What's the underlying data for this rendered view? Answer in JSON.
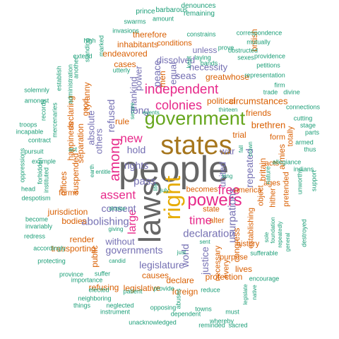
{
  "palette": {
    "green": "#1B9E77",
    "orange": "#D95F02",
    "purple": "#7570B3",
    "magenta": "#E7298A",
    "lime": "#66A61E",
    "gold": "#E6AB02",
    "brown": "#A6761D",
    "gray": "#666666"
  },
  "words": [
    {
      "text": "people",
      "color": "gray"
    },
    {
      "text": "states",
      "color": "brown"
    },
    {
      "text": "laws",
      "color": "gray"
    },
    {
      "text": "government",
      "color": "lime"
    },
    {
      "text": "right",
      "color": "gold"
    },
    {
      "text": "powers",
      "color": "magenta"
    },
    {
      "text": "among",
      "color": "magenta"
    },
    {
      "text": "independent",
      "color": "magenta"
    },
    {
      "text": "colonies",
      "color": "magenta"
    },
    {
      "text": "time",
      "color": "magenta"
    },
    {
      "text": "free",
      "color": "magenta"
    },
    {
      "text": "assent",
      "color": "magenta"
    },
    {
      "text": "new",
      "color": "magenta"
    },
    {
      "text": "large",
      "color": "magenta"
    },
    {
      "text": "declaration",
      "color": "purple"
    },
    {
      "text": "abolishing",
      "color": "purple"
    },
    {
      "text": "usurpations",
      "color": "purple"
    },
    {
      "text": "pass",
      "color": "purple"
    },
    {
      "text": "rights",
      "color": "purple"
    },
    {
      "text": "hold",
      "color": "purple"
    },
    {
      "text": "long",
      "color": "purple"
    },
    {
      "text": "seas",
      "color": "purple"
    },
    {
      "text": "refused",
      "color": "purple"
    },
    {
      "text": "others",
      "color": "purple"
    },
    {
      "text": "absolute",
      "color": "purple"
    },
    {
      "text": "mankind",
      "color": "purple"
    },
    {
      "text": "united",
      "color": "purple"
    },
    {
      "text": "war",
      "color": "purple"
    },
    {
      "text": "world",
      "color": "purple"
    },
    {
      "text": "repeated",
      "color": "purple"
    },
    {
      "text": "consent",
      "color": "purple"
    },
    {
      "text": "governments",
      "color": "purple"
    },
    {
      "text": "legislature",
      "color": "purple"
    },
    {
      "text": "without",
      "color": "purple"
    },
    {
      "text": "justice",
      "color": "purple"
    },
    {
      "text": "power",
      "color": "purple"
    },
    {
      "text": "peace",
      "color": "purple"
    },
    {
      "text": "equal",
      "color": "purple"
    },
    {
      "text": "dissolved",
      "color": "purple"
    },
    {
      "text": "necessity",
      "color": "purple"
    },
    {
      "text": "unless",
      "color": "purple"
    },
    {
      "text": "conditions",
      "color": "orange"
    },
    {
      "text": "therefore",
      "color": "orange"
    },
    {
      "text": "inhabitants",
      "color": "orange"
    },
    {
      "text": "endeavored",
      "color": "orange"
    },
    {
      "text": "cases",
      "color": "orange"
    },
    {
      "text": "tyranny",
      "color": "orange"
    },
    {
      "text": "political",
      "color": "orange"
    },
    {
      "text": "circumstances",
      "color": "orange"
    },
    {
      "text": "greatwhose",
      "color": "orange"
    },
    {
      "text": "friends",
      "color": "orange"
    },
    {
      "text": "brethren",
      "color": "orange"
    },
    {
      "text": "form",
      "color": "orange"
    },
    {
      "text": "congress",
      "color": "orange"
    },
    {
      "text": "trial",
      "color": "orange"
    },
    {
      "text": "totally",
      "color": "orange"
    },
    {
      "text": "armies",
      "color": "orange"
    },
    {
      "text": "britain",
      "color": "orange"
    },
    {
      "text": "acts",
      "color": "orange"
    },
    {
      "text": "pretended",
      "color": "orange"
    },
    {
      "text": "ages",
      "color": "orange"
    },
    {
      "text": "hither",
      "color": "orange"
    },
    {
      "text": "object",
      "color": "orange"
    },
    {
      "text": "establishing",
      "color": "orange"
    },
    {
      "text": "america",
      "color": "orange"
    },
    {
      "text": "becomes",
      "color": "orange"
    },
    {
      "text": "state",
      "color": "orange"
    },
    {
      "text": "alter",
      "color": "orange"
    },
    {
      "text": "history",
      "color": "orange"
    },
    {
      "text": "purpose",
      "color": "orange"
    },
    {
      "text": "lives",
      "color": "orange"
    },
    {
      "text": "every",
      "color": "orange"
    },
    {
      "text": "necessary",
      "color": "orange"
    },
    {
      "text": "protection",
      "color": "orange"
    },
    {
      "text": "declare",
      "color": "orange"
    },
    {
      "text": "foreign",
      "color": "orange"
    },
    {
      "text": "causes",
      "color": "orange"
    },
    {
      "text": "legislative",
      "color": "orange"
    },
    {
      "text": "refusing",
      "color": "orange"
    },
    {
      "text": "transporting",
      "color": "orange"
    },
    {
      "text": "render",
      "color": "orange"
    },
    {
      "text": "public",
      "color": "orange"
    },
    {
      "text": "bodies",
      "color": "orange"
    },
    {
      "text": "jurisdiction",
      "color": "orange"
    },
    {
      "text": "offices",
      "color": "orange"
    },
    {
      "text": "forms",
      "color": "orange"
    },
    {
      "text": "suspended",
      "color": "orange"
    },
    {
      "text": "happiness",
      "color": "orange"
    },
    {
      "text": "separation",
      "color": "orange"
    },
    {
      "text": "declaring",
      "color": "orange"
    },
    {
      "text": "good",
      "color": "orange"
    },
    {
      "text": "rule",
      "color": "orange"
    },
    {
      "text": "men",
      "color": "orange"
    },
    {
      "text": "british",
      "color": "orange"
    },
    {
      "text": "prince",
      "color": "green"
    },
    {
      "text": "barbarous",
      "color": "green"
    },
    {
      "text": "denounces",
      "color": "green"
    },
    {
      "text": "remaining",
      "color": "green"
    },
    {
      "text": "swarms",
      "color": "green"
    },
    {
      "text": "amount",
      "color": "green"
    },
    {
      "text": "invasions",
      "color": "green"
    },
    {
      "text": "constrains",
      "color": "green"
    },
    {
      "text": "correspondence",
      "color": "green"
    },
    {
      "text": "mutually",
      "color": "green"
    },
    {
      "text": "obstructed",
      "color": "green"
    },
    {
      "text": "prove",
      "color": "green"
    },
    {
      "text": "sexes",
      "color": "green"
    },
    {
      "text": "providence",
      "color": "green"
    },
    {
      "text": "petitions",
      "color": "green"
    },
    {
      "text": "representation",
      "color": "green"
    },
    {
      "text": "cutting",
      "color": "green"
    },
    {
      "text": "firm",
      "color": "green"
    },
    {
      "text": "trade",
      "color": "green"
    },
    {
      "text": "divine",
      "color": "green"
    },
    {
      "text": "connections",
      "color": "green"
    },
    {
      "text": "marked",
      "color": "green"
    },
    {
      "text": "utterly",
      "color": "green"
    },
    {
      "text": "laying",
      "color": "green"
    },
    {
      "text": "bands",
      "color": "green"
    },
    {
      "text": "kept",
      "color": "green"
    },
    {
      "text": "sent",
      "color": "green"
    },
    {
      "text": "secure",
      "color": "green"
    },
    {
      "text": "events",
      "color": "green"
    },
    {
      "text": "thirteen",
      "color": "green"
    },
    {
      "text": "whereby",
      "color": "green"
    },
    {
      "text": "crown",
      "color": "green"
    },
    {
      "text": "fall",
      "color": "green"
    },
    {
      "text": "stage",
      "color": "green"
    },
    {
      "text": "parts",
      "color": "green"
    },
    {
      "text": "armed",
      "color": "green"
    },
    {
      "text": "thus",
      "color": "green"
    },
    {
      "text": "allegiance",
      "color": "green"
    },
    {
      "text": "indians",
      "color": "green"
    },
    {
      "text": "unworthy",
      "color": "green"
    },
    {
      "text": "support",
      "color": "green"
    },
    {
      "text": "nature",
      "color": "green"
    },
    {
      "text": "king",
      "color": "green"
    },
    {
      "text": "july",
      "color": "green"
    },
    {
      "text": "dictate",
      "color": "green"
    },
    {
      "text": "life",
      "color": "green"
    },
    {
      "text": "entitle",
      "color": "green"
    },
    {
      "text": "earth",
      "color": "green"
    },
    {
      "text": "act",
      "color": "green"
    },
    {
      "text": "high",
      "color": "green"
    },
    {
      "text": "standing",
      "color": "green"
    },
    {
      "text": "extend",
      "color": "green"
    },
    {
      "text": "another",
      "color": "green"
    },
    {
      "text": "administration",
      "color": "green"
    },
    {
      "text": "establish",
      "color": "green"
    },
    {
      "text": "mercenaries",
      "color": "green"
    },
    {
      "text": "solemnly",
      "color": "green"
    },
    {
      "text": "amongst",
      "color": "green"
    },
    {
      "text": "records",
      "color": "green"
    },
    {
      "text": "pursuit",
      "color": "green"
    },
    {
      "text": "troops",
      "color": "green"
    },
    {
      "text": "incapable",
      "color": "green"
    },
    {
      "text": "contract",
      "color": "green"
    },
    {
      "text": "oppressions",
      "color": "green"
    },
    {
      "text": "example",
      "color": "green"
    },
    {
      "text": "forbidden",
      "color": "green"
    },
    {
      "text": "instituted",
      "color": "green"
    },
    {
      "text": "head",
      "color": "green"
    },
    {
      "text": "despotism",
      "color": "green"
    },
    {
      "text": "become",
      "color": "green"
    },
    {
      "text": "invariably",
      "color": "green"
    },
    {
      "text": "redress",
      "color": "green"
    },
    {
      "text": "accordingly",
      "color": "green"
    },
    {
      "text": "protecting",
      "color": "green"
    },
    {
      "text": "giving",
      "color": "green"
    },
    {
      "text": "candid",
      "color": "green"
    },
    {
      "text": "province",
      "color": "green"
    },
    {
      "text": "suffer",
      "color": "green"
    },
    {
      "text": "importance",
      "color": "green"
    },
    {
      "text": "elected",
      "color": "green"
    },
    {
      "text": "patient",
      "color": "green"
    },
    {
      "text": "neighboring",
      "color": "green"
    },
    {
      "text": "things",
      "color": "green"
    },
    {
      "text": "neglected",
      "color": "green"
    },
    {
      "text": "instrument",
      "color": "green"
    },
    {
      "text": "opposing",
      "color": "green"
    },
    {
      "text": "dependent",
      "color": "green"
    },
    {
      "text": "unacknowledged",
      "color": "green"
    },
    {
      "text": "provide",
      "color": "green"
    },
    {
      "text": "abuses",
      "color": "green"
    },
    {
      "text": "towns",
      "color": "green"
    },
    {
      "text": "reduce",
      "color": "green"
    },
    {
      "text": "must",
      "color": "green"
    },
    {
      "text": "reminded",
      "color": "green"
    },
    {
      "text": "sacred",
      "color": "green"
    },
    {
      "text": "just",
      "color": "green"
    },
    {
      "text": "sufferable",
      "color": "green"
    },
    {
      "text": "encourage",
      "color": "green"
    },
    {
      "text": "legislate",
      "color": "green"
    },
    {
      "text": "native",
      "color": "green"
    },
    {
      "text": "sole",
      "color": "green"
    },
    {
      "text": "foundation",
      "color": "green"
    },
    {
      "text": "repeatedly",
      "color": "green"
    },
    {
      "text": "general",
      "color": "green"
    },
    {
      "text": "destroyed",
      "color": "green"
    }
  ]
}
